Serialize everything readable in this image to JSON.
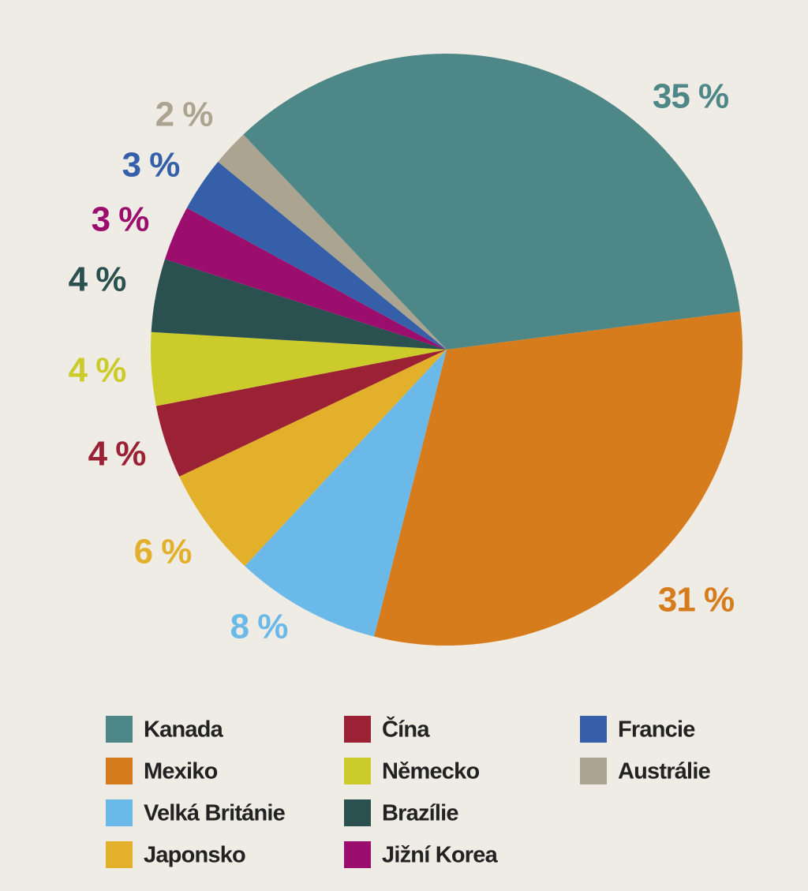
{
  "chart_data": {
    "type": "pie",
    "categories": [
      "Kanada",
      "Mexiko",
      "Velká Británie",
      "Japonsko",
      "Čína",
      "Německo",
      "Brazílie",
      "Jižní Korea",
      "Francie",
      "Austrálie"
    ],
    "values": [
      35,
      31,
      8,
      6,
      4,
      4,
      4,
      3,
      3,
      2
    ],
    "value_labels": [
      "35 %",
      "31 %",
      "8 %",
      "6 %",
      "4 %",
      "4 %",
      "4 %",
      "3 %",
      "3 %",
      "2 %"
    ],
    "colors": [
      "#4e8787",
      "#d77c1c",
      "#6bb9e9",
      "#e3b02c",
      "#9a2234",
      "#cbcb2c",
      "#2b5050",
      "#9c0e6e",
      "#3560a9",
      "#aba491"
    ]
  }
}
